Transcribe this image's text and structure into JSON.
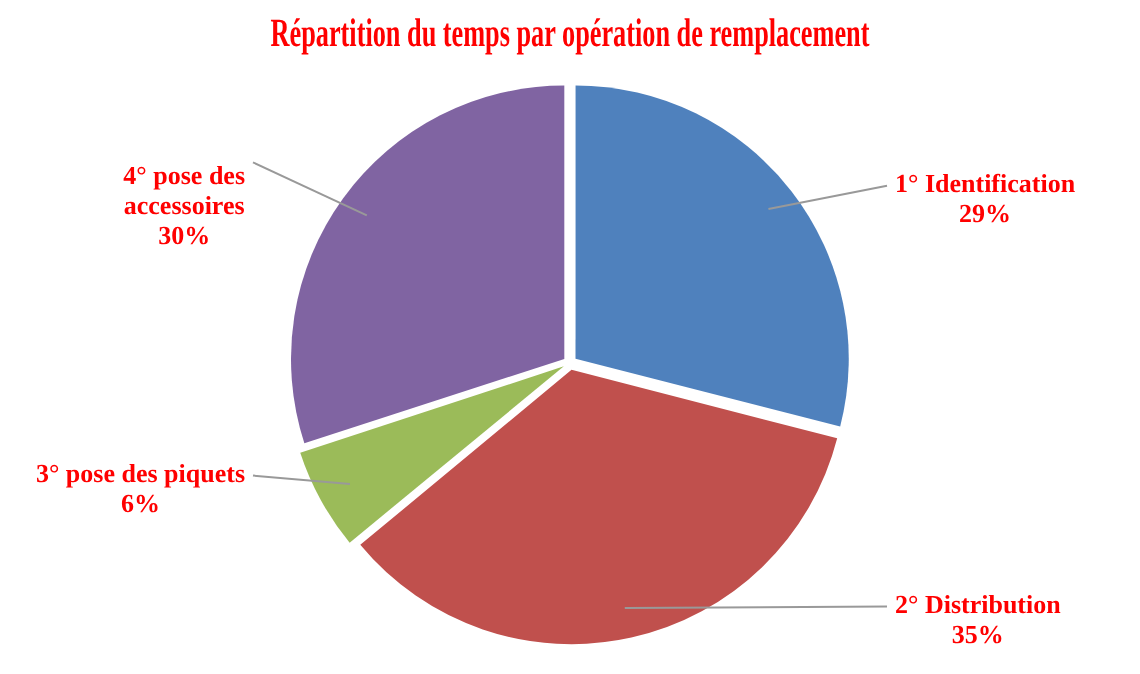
{
  "chart_data": {
    "type": "pie",
    "title": "Répartition du temps par opération de remplacement",
    "categories": [
      "1° Identification",
      "2° Distribution",
      "3° pose des piquets",
      "4° pose des accessoires"
    ],
    "values": [
      29,
      35,
      6,
      30
    ],
    "colors": [
      "#4f81bd",
      "#c0504d",
      "#9bbb59",
      "#8064a2"
    ],
    "value_labels": [
      "29%",
      "35%",
      "6%",
      "30%"
    ],
    "legend": false
  }
}
